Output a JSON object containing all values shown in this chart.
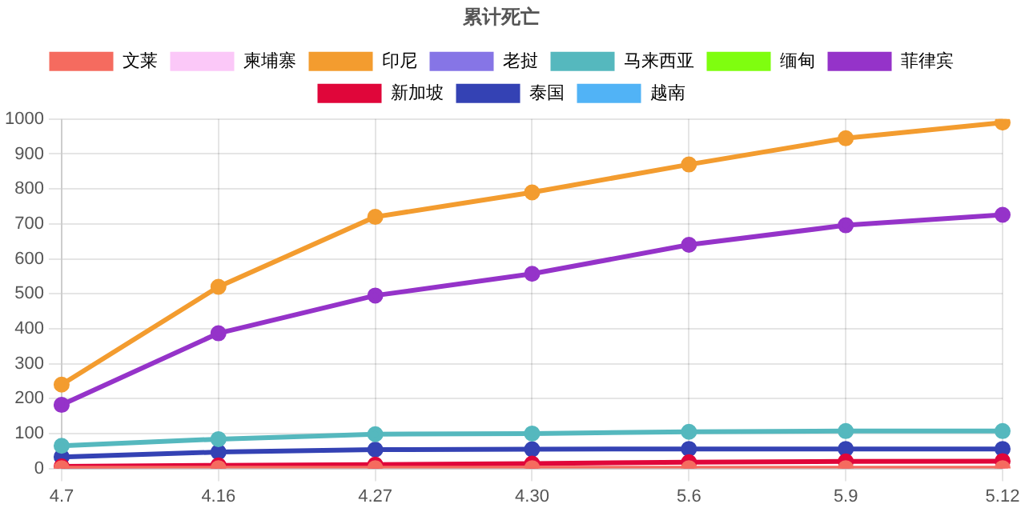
{
  "chart_data": {
    "type": "line",
    "title": "累计死亡",
    "categories": [
      "4.7",
      "4.16",
      "4.27",
      "4.30",
      "5.6",
      "5.9",
      "5.12"
    ],
    "series": [
      {
        "name": "文莱",
        "color": "#f56b5f",
        "values": [
          1,
          1,
          1,
          1,
          1,
          1,
          1
        ]
      },
      {
        "name": "柬埔寨",
        "color": "#fbc8f8",
        "values": [
          null,
          null,
          null,
          null,
          null,
          null,
          null
        ]
      },
      {
        "name": "印尼",
        "color": "#f39c2f",
        "values": [
          240,
          520,
          720,
          790,
          870,
          945,
          990
        ]
      },
      {
        "name": "老挝",
        "color": "#8675e6",
        "values": [
          null,
          null,
          null,
          null,
          null,
          null,
          null
        ]
      },
      {
        "name": "马来西亚",
        "color": "#55b8be",
        "values": [
          65,
          84,
          98,
          100,
          105,
          107,
          107
        ]
      },
      {
        "name": "缅甸",
        "color": "#7ffe0f",
        "values": [
          null,
          null,
          null,
          null,
          null,
          null,
          null
        ]
      },
      {
        "name": "菲律宾",
        "color": "#9533c9",
        "values": [
          182,
          387,
          495,
          557,
          640,
          696,
          726
        ]
      },
      {
        "name": "新加坡",
        "color": "#e0063a",
        "values": [
          6,
          9,
          11,
          14,
          18,
          20,
          21
        ]
      },
      {
        "name": "泰国",
        "color": "#3442b4",
        "values": [
          33,
          47,
          54,
          55,
          56,
          56,
          56
        ]
      },
      {
        "name": "越南",
        "color": "#51b3f6",
        "values": [
          null,
          null,
          null,
          null,
          null,
          null,
          null
        ]
      }
    ],
    "ylim": [
      0,
      1000
    ],
    "yticks": [
      0,
      100,
      200,
      300,
      400,
      500,
      600,
      700,
      800,
      900,
      1000
    ],
    "grid": true,
    "legend": "top",
    "marker": "circle",
    "line_style": "solid"
  }
}
